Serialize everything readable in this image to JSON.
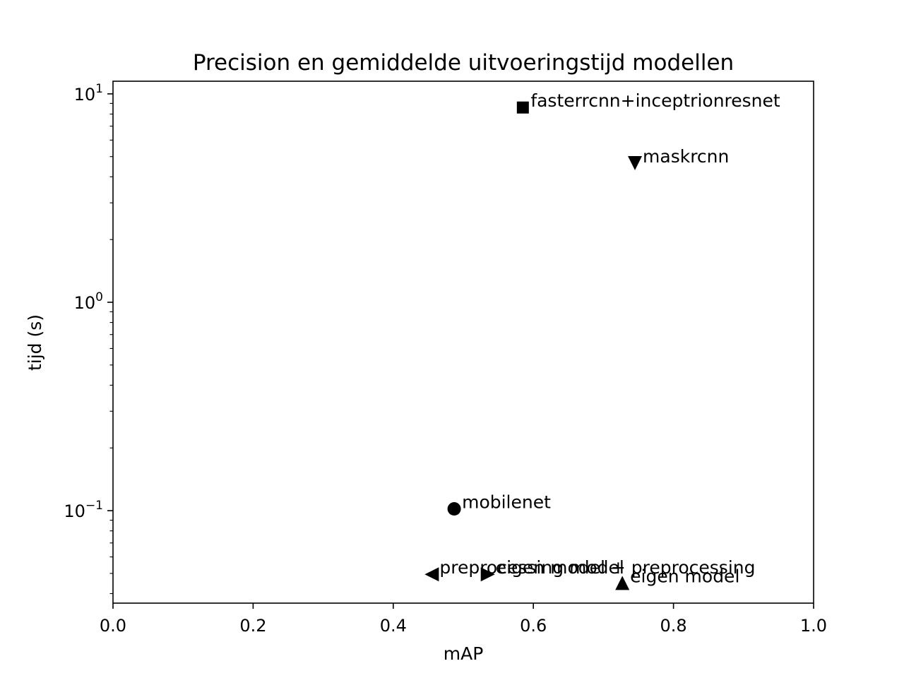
{
  "chart_data": {
    "type": "scatter",
    "title": "Precision en gemiddelde uitvoeringstijd modellen",
    "xlabel": "mAP",
    "ylabel": "tijd (s)",
    "xlim": [
      0.0,
      1.0
    ],
    "ylim": [
      0.036,
      11.5
    ],
    "yscale": "log",
    "grid": false,
    "x_ticks": [
      {
        "value": 0.0,
        "label": "0.0"
      },
      {
        "value": 0.2,
        "label": "0.2"
      },
      {
        "value": 0.4,
        "label": "0.4"
      },
      {
        "value": 0.6,
        "label": "0.6"
      },
      {
        "value": 0.8,
        "label": "0.8"
      },
      {
        "value": 1.0,
        "label": "1.0"
      }
    ],
    "y_ticks": [
      {
        "value": 10,
        "base": "10",
        "exp": "1"
      },
      {
        "value": 1,
        "base": "10",
        "exp": "0"
      },
      {
        "value": 0.1,
        "base": "10",
        "exp": "−1"
      }
    ],
    "points": [
      {
        "label": "fasterrcnn+inceptrionresnet",
        "x": 0.585,
        "y": 8.6,
        "marker": "square"
      },
      {
        "label": "maskrcnn",
        "x": 0.745,
        "y": 4.65,
        "marker": "triangle-down"
      },
      {
        "label": "mobilenet",
        "x": 0.487,
        "y": 0.102,
        "marker": "circle"
      },
      {
        "label": "preprocessing model",
        "x": 0.455,
        "y": 0.0495,
        "marker": "triangle-left"
      },
      {
        "label": "eigen model + preprocessing",
        "x": 0.535,
        "y": 0.0495,
        "marker": "triangle-right"
      },
      {
        "label": "eigen model",
        "x": 0.727,
        "y": 0.045,
        "marker": "triangle-up"
      }
    ]
  }
}
